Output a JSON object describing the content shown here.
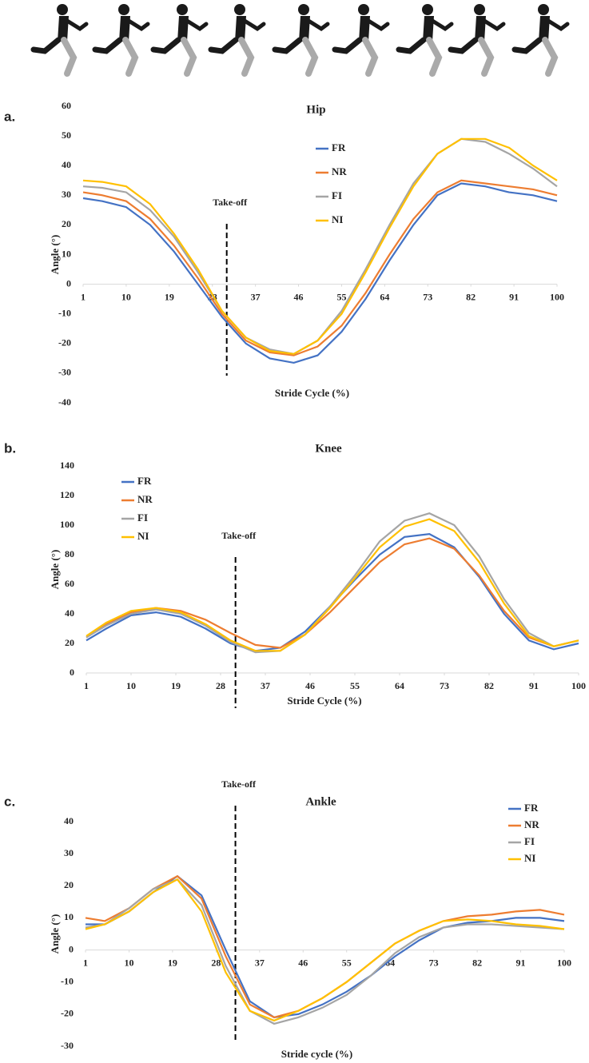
{
  "chart_data": [
    {
      "type": "line",
      "panel": "a.",
      "title": "Hip",
      "x_label": "Stride Cycle (%)",
      "y_label": "Angle (°)",
      "x": [
        1,
        5,
        10,
        15,
        20,
        25,
        30,
        35,
        40,
        45,
        50,
        55,
        60,
        65,
        70,
        75,
        80,
        85,
        90,
        95,
        100
      ],
      "xlim": [
        1,
        100
      ],
      "xticks": [
        1,
        10,
        19,
        28,
        37,
        46,
        55,
        64,
        73,
        82,
        91,
        100
      ],
      "ylim": [
        -40,
        60
      ],
      "yticks": [
        -40,
        -30,
        -20,
        -10,
        0,
        10,
        20,
        30,
        40,
        50,
        60
      ],
      "legend": "upper center",
      "annotation": {
        "text": "Take-off",
        "x": 31
      },
      "series": [
        {
          "name": "FR",
          "color": "#4472c4",
          "values": [
            29,
            28,
            26,
            20,
            11,
            0,
            -11,
            -20,
            -25,
            -26.5,
            -24,
            -16,
            -5,
            8,
            20,
            30,
            34,
            33,
            31,
            30,
            28
          ]
        },
        {
          "name": "NR",
          "color": "#ed7d31",
          "values": [
            31,
            30,
            28,
            22,
            13,
            2,
            -10,
            -19,
            -23,
            -24,
            -21,
            -14,
            -3,
            10,
            22,
            31,
            35,
            34,
            33,
            32,
            30
          ]
        },
        {
          "name": "FI",
          "color": "#a5a5a5",
          "values": [
            33,
            32.5,
            31,
            25,
            16,
            4,
            -9,
            -18,
            -22,
            -23.5,
            -19,
            -9,
            5,
            20,
            34,
            44,
            49,
            48,
            44,
            39,
            33
          ]
        },
        {
          "name": "NI",
          "color": "#ffc000",
          "values": [
            35,
            34.5,
            33,
            27,
            17,
            5,
            -9,
            -18,
            -22.5,
            -23.5,
            -19,
            -10,
            4,
            19,
            33,
            44,
            49,
            49,
            46,
            40,
            35
          ]
        }
      ]
    },
    {
      "type": "line",
      "panel": "b.",
      "title": "Knee",
      "x_label": "Stride Cycle (%)",
      "y_label": "Angle (°)",
      "x": [
        1,
        5,
        10,
        15,
        20,
        25,
        30,
        35,
        40,
        45,
        50,
        55,
        60,
        65,
        70,
        75,
        80,
        85,
        90,
        95,
        100
      ],
      "xlim": [
        1,
        100
      ],
      "xticks": [
        1,
        10,
        19,
        28,
        37,
        46,
        55,
        64,
        73,
        82,
        91,
        100
      ],
      "ylim": [
        0,
        140
      ],
      "yticks": [
        0,
        20,
        40,
        60,
        80,
        100,
        120,
        140
      ],
      "legend": "upper left",
      "annotation": {
        "text": "Take-off",
        "x": 31
      },
      "series": [
        {
          "name": "FR",
          "color": "#4472c4",
          "values": [
            22,
            30,
            39,
            41,
            38,
            30,
            20,
            15,
            17,
            28,
            45,
            63,
            80,
            92,
            94,
            85,
            65,
            40,
            22,
            16,
            20
          ]
        },
        {
          "name": "NR",
          "color": "#ed7d31",
          "values": [
            24,
            33,
            41,
            44,
            42,
            36,
            27,
            19,
            17,
            26,
            41,
            58,
            75,
            87,
            91,
            84,
            66,
            42,
            24,
            18,
            22
          ]
        },
        {
          "name": "FI",
          "color": "#a5a5a5",
          "values": [
            24,
            32,
            40,
            43,
            40,
            32,
            21,
            14,
            15,
            26,
            45,
            66,
            89,
            103,
            108,
            100,
            79,
            50,
            27,
            18,
            22
          ]
        },
        {
          "name": "NI",
          "color": "#ffc000",
          "values": [
            25,
            34,
            42,
            44,
            41,
            33,
            22,
            15,
            15,
            26,
            44,
            64,
            85,
            99,
            104,
            96,
            75,
            47,
            25,
            18,
            22
          ]
        }
      ]
    },
    {
      "type": "line",
      "panel": "c.",
      "title": "Ankle",
      "x_label": "Stride cycle (%)",
      "y_label": "Angle (°)",
      "x": [
        1,
        5,
        10,
        15,
        20,
        25,
        30,
        35,
        40,
        45,
        50,
        55,
        60,
        65,
        70,
        75,
        80,
        85,
        90,
        95,
        100
      ],
      "xlim": [
        1,
        100
      ],
      "xticks": [
        1,
        10,
        19,
        28,
        37,
        46,
        55,
        64,
        73,
        82,
        91,
        100
      ],
      "ylim": [
        -30,
        40
      ],
      "yticks": [
        -30,
        -20,
        -10,
        0,
        10,
        20,
        30,
        40
      ],
      "legend": "upper right",
      "annotation": {
        "text": "Take-off",
        "x": 32
      },
      "series": [
        {
          "name": "FR",
          "color": "#4472c4",
          "values": [
            8,
            8,
            12,
            18,
            23,
            17,
            0,
            -16,
            -21,
            -20,
            -17,
            -13,
            -8,
            -2,
            3,
            7,
            8.5,
            9,
            10,
            10,
            9
          ]
        },
        {
          "name": "NR",
          "color": "#ed7d31",
          "values": [
            10,
            9,
            13,
            19,
            23,
            16,
            -2,
            -17,
            -21,
            -19,
            -15,
            -10,
            -4,
            2,
            6,
            9,
            10.5,
            11,
            12,
            12.5,
            11
          ]
        },
        {
          "name": "FI",
          "color": "#a5a5a5",
          "values": [
            7,
            8,
            13,
            19,
            22,
            14,
            -5,
            -19,
            -23,
            -21,
            -18,
            -14,
            -8,
            -1,
            4,
            7,
            8,
            8,
            7.5,
            7,
            6.5
          ]
        },
        {
          "name": "NI",
          "color": "#ffc000",
          "values": [
            6.5,
            8,
            12,
            18,
            22,
            12,
            -7,
            -19,
            -22,
            -19,
            -15,
            -10,
            -4,
            2,
            6,
            9,
            9.5,
            9,
            8,
            7.5,
            6.5
          ]
        }
      ]
    }
  ]
}
